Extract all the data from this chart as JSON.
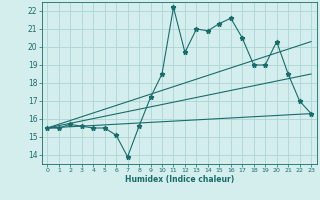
{
  "xlabel": "Humidex (Indice chaleur)",
  "ylabel": "",
  "bg_color": "#d4eeee",
  "grid_color": "#aed4d4",
  "line_color": "#1a6b6b",
  "xlim": [
    -0.5,
    23.5
  ],
  "ylim": [
    13.5,
    22.5
  ],
  "xticks": [
    0,
    1,
    2,
    3,
    4,
    5,
    6,
    7,
    8,
    9,
    10,
    11,
    12,
    13,
    14,
    15,
    16,
    17,
    18,
    19,
    20,
    21,
    22,
    23
  ],
  "yticks": [
    14,
    15,
    16,
    17,
    18,
    19,
    20,
    21,
    22
  ],
  "series": [
    {
      "x": [
        0,
        1,
        2,
        3,
        4,
        5,
        6,
        7,
        8,
        9,
        10,
        11,
        12,
        13,
        14,
        15,
        16,
        17,
        18,
        19,
        20,
        21,
        22,
        23
      ],
      "y": [
        15.5,
        15.5,
        15.7,
        15.6,
        15.5,
        15.5,
        15.1,
        13.9,
        15.6,
        17.2,
        18.5,
        22.2,
        19.7,
        21.0,
        20.9,
        21.3,
        21.6,
        20.5,
        19.0,
        19.0,
        20.3,
        18.5,
        17.0,
        16.3
      ],
      "marker": "*",
      "markersize": 3.5,
      "linewidth": 0.8
    },
    {
      "x": [
        0,
        23
      ],
      "y": [
        15.5,
        20.3
      ],
      "marker": null,
      "markersize": 0,
      "linewidth": 0.8
    },
    {
      "x": [
        0,
        23
      ],
      "y": [
        15.5,
        18.5
      ],
      "marker": null,
      "markersize": 0,
      "linewidth": 0.8
    },
    {
      "x": [
        0,
        23
      ],
      "y": [
        15.5,
        16.3
      ],
      "marker": null,
      "markersize": 0,
      "linewidth": 0.8
    }
  ]
}
